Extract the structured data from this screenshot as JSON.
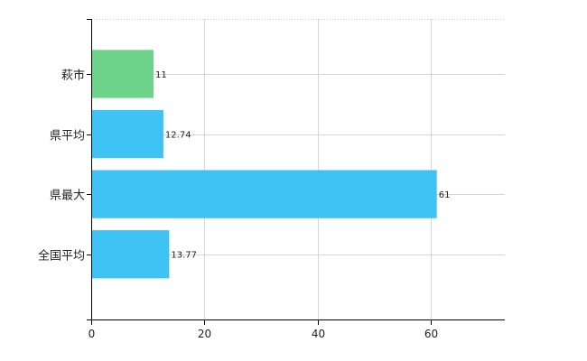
{
  "chart_data": {
    "type": "bar",
    "orientation": "horizontal",
    "categories": [
      "萩市",
      "県平均",
      "県最大",
      "全国平均"
    ],
    "values": [
      11,
      12.74,
      61,
      13.77
    ],
    "value_labels": [
      "11",
      "12.74",
      "61",
      "13.77"
    ],
    "bar_colors": [
      "#6dd38a",
      "#3fc3f4",
      "#3fc3f4",
      "#3fc3f4"
    ],
    "xlim": [
      0,
      73
    ],
    "xticks": [
      0,
      20,
      40,
      60
    ],
    "xtick_labels": [
      "0",
      "20",
      "40",
      "60"
    ],
    "grid": true,
    "title": "",
    "xlabel": "",
    "ylabel": ""
  }
}
